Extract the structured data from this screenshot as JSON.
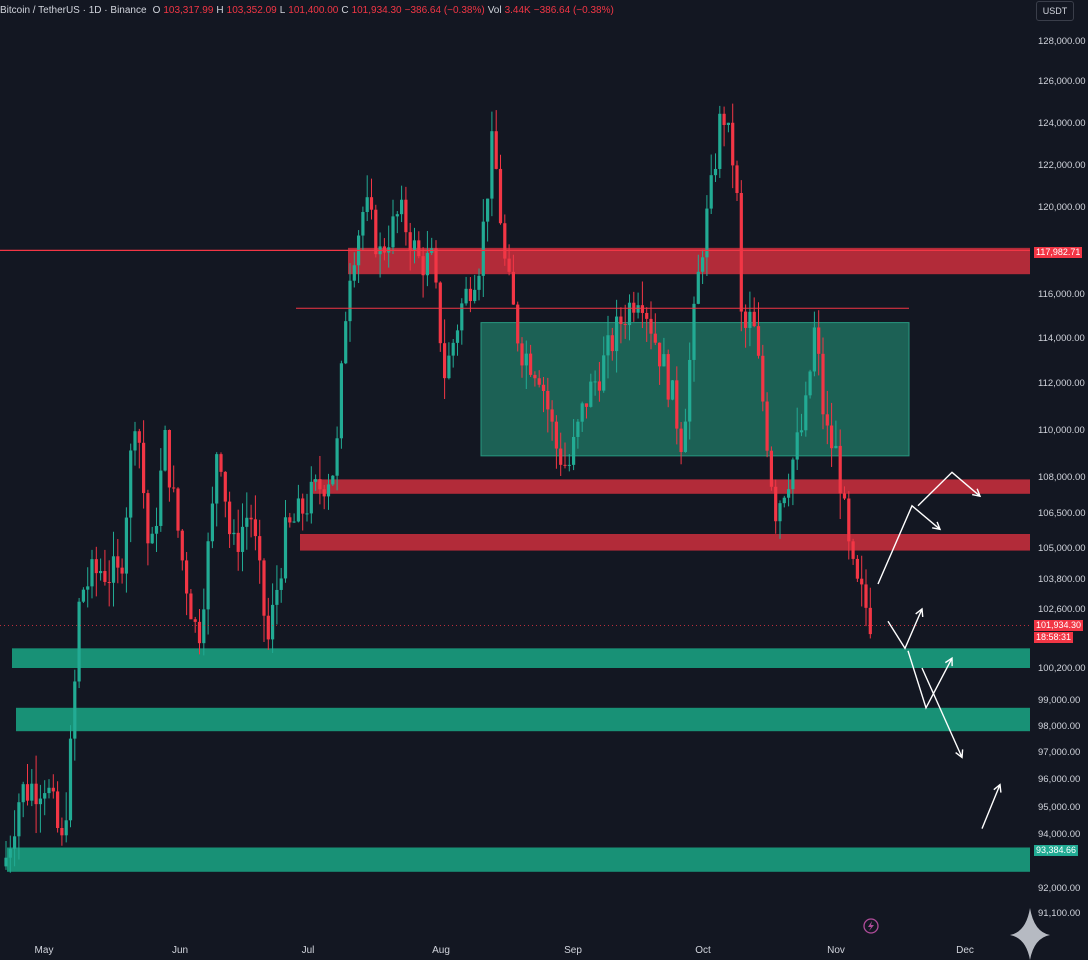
{
  "header": {
    "symbol": "Bitcoin / TetherUS · 1D · Binance",
    "ohlc": [
      {
        "k": "O",
        "v": "103,317.99"
      },
      {
        "k": "H",
        "v": "103,352.09"
      },
      {
        "k": "L",
        "v": "101,400.00"
      },
      {
        "k": "C",
        "v": "101,934.30"
      },
      {
        "k": "",
        "v": "−386.64 (−0.38%)"
      },
      {
        "k": "Vol",
        "v": "3.44K"
      },
      {
        "k": "",
        "v": "−386.64 (−0.38%)"
      }
    ]
  },
  "currency_button": "USDT",
  "price_labels": {
    "resistance": "117,982.71",
    "current": "101,934.30",
    "countdown": "18:58:31",
    "support": "93,384.66"
  },
  "colors": {
    "background": "#131722",
    "up": "#22ab94",
    "down": "#f23645",
    "resistance_zone": "#d5303e",
    "support_zone": "#1a9e80",
    "range_box": "#1f7a66",
    "text": "#d1d4dc",
    "arrows": "#ffffff"
  },
  "chart_data": {
    "type": "candlestick",
    "symbol": "BTC/USDT",
    "interval": "1D",
    "exchange": "Binance",
    "y_axis": {
      "ticks": [
        {
          "value": 128000,
          "label": "128,000.00"
        },
        {
          "value": 126000,
          "label": "126,000.00"
        },
        {
          "value": 124000,
          "label": "124,000.00"
        },
        {
          "value": 122000,
          "label": "122,000.00"
        },
        {
          "value": 120000,
          "label": "120,000.00"
        },
        {
          "value": 116000,
          "label": "116,000.00"
        },
        {
          "value": 114000,
          "label": "114,000.00"
        },
        {
          "value": 112000,
          "label": "112,000.00"
        },
        {
          "value": 110000,
          "label": "110,000.00"
        },
        {
          "value": 108000,
          "label": "108,000.00"
        },
        {
          "value": 106500,
          "label": "106,500.00"
        },
        {
          "value": 105000,
          "label": "105,000.00"
        },
        {
          "value": 103800,
          "label": "103,800.00"
        },
        {
          "value": 102600,
          "label": "102,600.00"
        },
        {
          "value": 100200,
          "label": "100,200.00"
        },
        {
          "value": 99000,
          "label": "99,000.00"
        },
        {
          "value": 98000,
          "label": "98,000.00"
        },
        {
          "value": 97000,
          "label": "97,000.00"
        },
        {
          "value": 96000,
          "label": "96,000.00"
        },
        {
          "value": 95000,
          "label": "95,000.00"
        },
        {
          "value": 94000,
          "label": "94,000.00"
        },
        {
          "value": 92000,
          "label": "92,000.00"
        },
        {
          "value": 91100,
          "label": "91,100.00"
        }
      ]
    },
    "x_axis": {
      "labels": [
        "May",
        "Jun",
        "Jul",
        "Aug",
        "Sep",
        "Oct",
        "Nov",
        "Dec"
      ]
    },
    "zones": [
      {
        "kind": "resistance",
        "top": 118100,
        "bottom": 116900,
        "start": "Jul",
        "extend": "right"
      },
      {
        "kind": "resistance",
        "top": 107900,
        "bottom": 107300,
        "start": "Jul",
        "extend": "right"
      },
      {
        "kind": "resistance",
        "top": 105600,
        "bottom": 104900,
        "start": "Jul",
        "extend": "right"
      },
      {
        "kind": "support",
        "top": 101000,
        "bottom": 100200,
        "start": "May",
        "extend": "right"
      },
      {
        "kind": "support",
        "top": 98700,
        "bottom": 97800,
        "start": "May",
        "extend": "right"
      },
      {
        "kind": "support",
        "top": 93500,
        "bottom": 92600,
        "start": "May",
        "extend": "right"
      }
    ],
    "range_box": {
      "top": 114700,
      "bottom": 108900,
      "from": "Aug",
      "to": "Nov"
    },
    "lines": [
      {
        "price": 117982.71,
        "from": "Apr",
        "to": "right"
      },
      {
        "price": 115350,
        "from": "Jul",
        "to": "Nov"
      }
    ],
    "current_price": 101934.3,
    "projection_arrows": [
      {
        "path": [
          [
            103600,
            0
          ],
          [
            106800,
            1
          ],
          [
            105800,
            2
          ]
        ]
      },
      {
        "path": [
          [
            106800,
            3
          ],
          [
            108200,
            4
          ],
          [
            107200,
            5
          ]
        ]
      },
      {
        "path": [
          [
            102100,
            6
          ],
          [
            101000,
            7
          ],
          [
            102600,
            8
          ]
        ]
      },
      {
        "path": [
          [
            100900,
            9
          ],
          [
            98700,
            10
          ],
          [
            100600,
            11
          ]
        ]
      },
      {
        "path": [
          [
            100200,
            12
          ],
          [
            96800,
            13
          ]
        ]
      },
      {
        "path": [
          [
            94200,
            14
          ],
          [
            95800,
            15
          ]
        ]
      }
    ]
  }
}
